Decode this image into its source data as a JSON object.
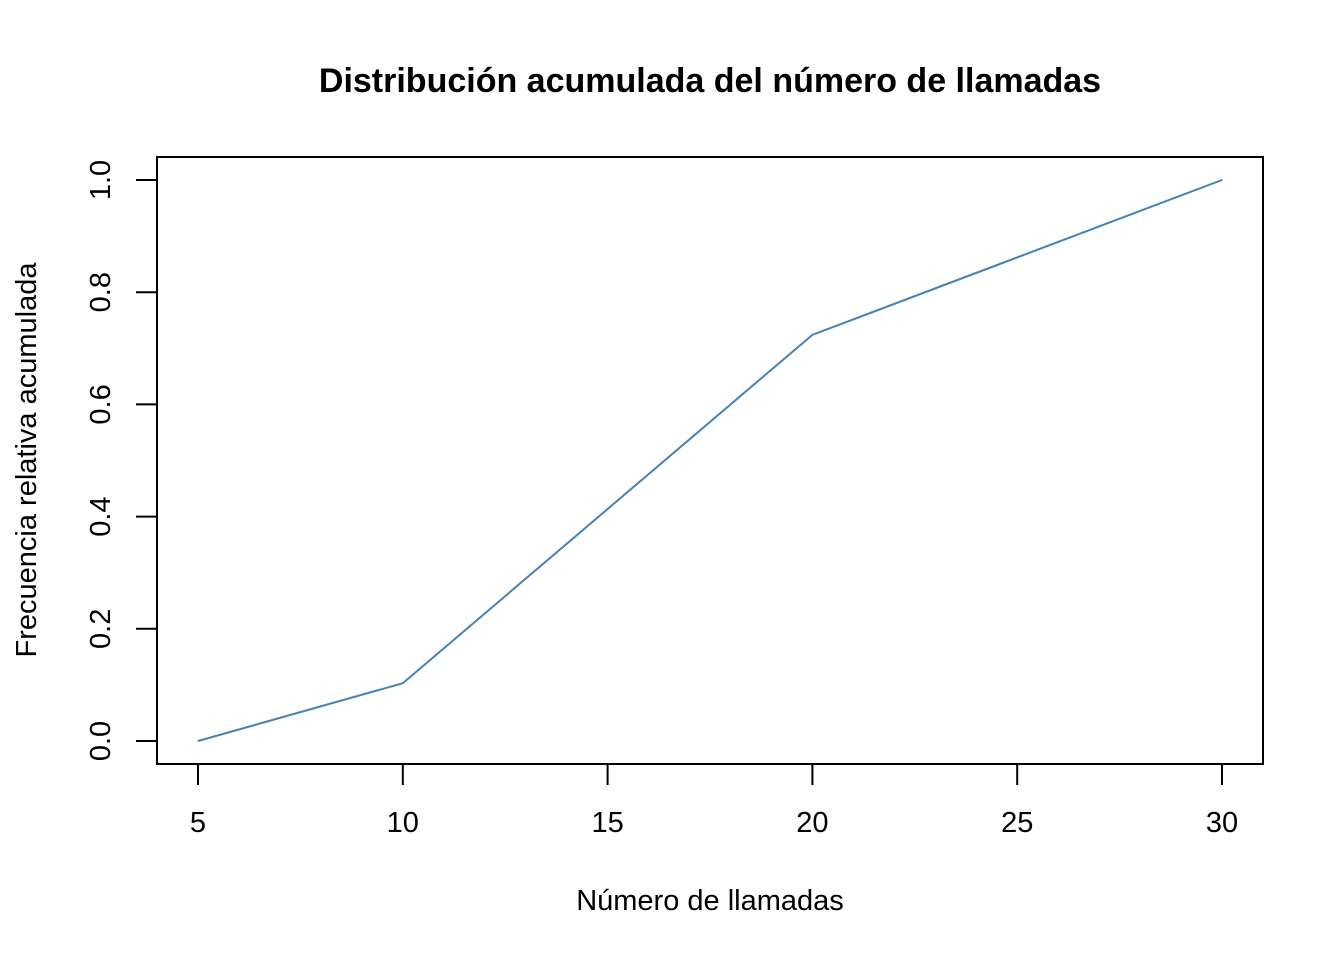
{
  "chart_data": {
    "type": "line",
    "title": "Distribución acumulada del número de llamadas",
    "xlabel": "Número de llamadas",
    "ylabel": "Frecuencia relativa acumulada",
    "x": [
      5,
      10,
      20,
      30
    ],
    "series": [
      {
        "values": [
          0.0,
          0.103,
          0.724,
          1.0
        ]
      }
    ],
    "xlim": [
      5,
      30
    ],
    "ylim": [
      0.0,
      1.0
    ],
    "x_ticks": [
      "5",
      "10",
      "15",
      "20",
      "25",
      "30"
    ],
    "y_ticks": [
      "0.0",
      "0.2",
      "0.4",
      "0.6",
      "0.8",
      "1.0"
    ],
    "grid": false,
    "box": true,
    "colors": {
      "line": "#4682B4",
      "axis": "#000000"
    }
  }
}
